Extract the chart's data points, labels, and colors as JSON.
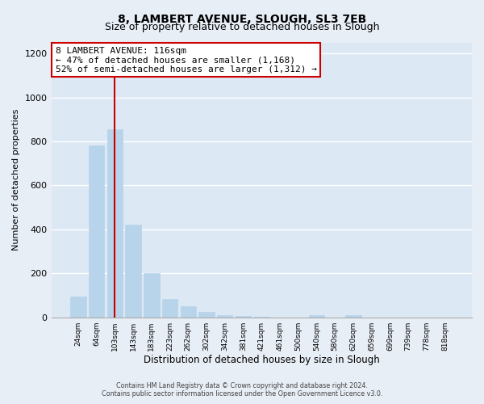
{
  "title": "8, LAMBERT AVENUE, SLOUGH, SL3 7EB",
  "subtitle": "Size of property relative to detached houses in Slough",
  "xlabel": "Distribution of detached houses by size in Slough",
  "ylabel": "Number of detached properties",
  "bar_labels": [
    "24sqm",
    "64sqm",
    "103sqm",
    "143sqm",
    "183sqm",
    "223sqm",
    "262sqm",
    "302sqm",
    "342sqm",
    "381sqm",
    "421sqm",
    "461sqm",
    "500sqm",
    "540sqm",
    "580sqm",
    "620sqm",
    "659sqm",
    "699sqm",
    "739sqm",
    "778sqm",
    "818sqm"
  ],
  "bar_values": [
    95,
    780,
    855,
    420,
    200,
    85,
    50,
    25,
    10,
    5,
    2,
    0,
    0,
    10,
    0,
    10,
    0,
    0,
    0,
    0,
    0
  ],
  "bar_color": "#b8d4ea",
  "bar_edge_color": "#b8d4ea",
  "vline_x": 2,
  "vline_color": "#cc0000",
  "annotation_text": "8 LAMBERT AVENUE: 116sqm\n← 47% of detached houses are smaller (1,168)\n52% of semi-detached houses are larger (1,312) →",
  "annotation_box_facecolor": "#ffffff",
  "annotation_box_edgecolor": "#cc0000",
  "ylim": [
    0,
    1250
  ],
  "yticks": [
    0,
    200,
    400,
    600,
    800,
    1000,
    1200
  ],
  "footer_text": "Contains HM Land Registry data © Crown copyright and database right 2024.\nContains public sector information licensed under the Open Government Licence v3.0.",
  "bg_color": "#e8eef6",
  "plot_bg_color": "#dce8f4",
  "grid_color": "#ffffff",
  "title_fontsize": 10,
  "subtitle_fontsize": 9
}
